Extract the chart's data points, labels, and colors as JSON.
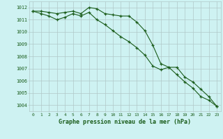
{
  "title": "Graphe pression niveau de la mer (hPa)",
  "bg_color": "#cef2f2",
  "grid_color": "#b0c8c8",
  "line_color": "#1a5c1a",
  "series1": [
    1011.7,
    1011.7,
    1011.6,
    1011.5,
    1011.6,
    1011.7,
    1011.5,
    1012.0,
    1011.9,
    1011.5,
    1011.4,
    1011.3,
    1011.3,
    1010.8,
    1010.1,
    1008.9,
    1007.4,
    1007.1,
    1007.1,
    1006.3,
    1005.9,
    1005.3,
    1004.7,
    1003.9
  ],
  "series2": [
    1011.7,
    1011.5,
    1011.3,
    1011.0,
    1011.2,
    1011.5,
    1011.3,
    1011.6,
    1011.0,
    1010.6,
    1010.1,
    1009.6,
    1009.2,
    1008.7,
    1008.1,
    1007.2,
    1006.9,
    1007.1,
    1006.5,
    1005.9,
    1005.4,
    1004.7,
    1004.4,
    1003.9
  ],
  "ylim": [
    1003.5,
    1012.5
  ],
  "yticks": [
    1004,
    1005,
    1006,
    1007,
    1008,
    1009,
    1010,
    1011,
    1012
  ],
  "xticks": [
    0,
    1,
    2,
    3,
    4,
    5,
    6,
    7,
    8,
    9,
    10,
    11,
    12,
    13,
    14,
    15,
    16,
    17,
    18,
    19,
    20,
    21,
    22,
    23
  ]
}
